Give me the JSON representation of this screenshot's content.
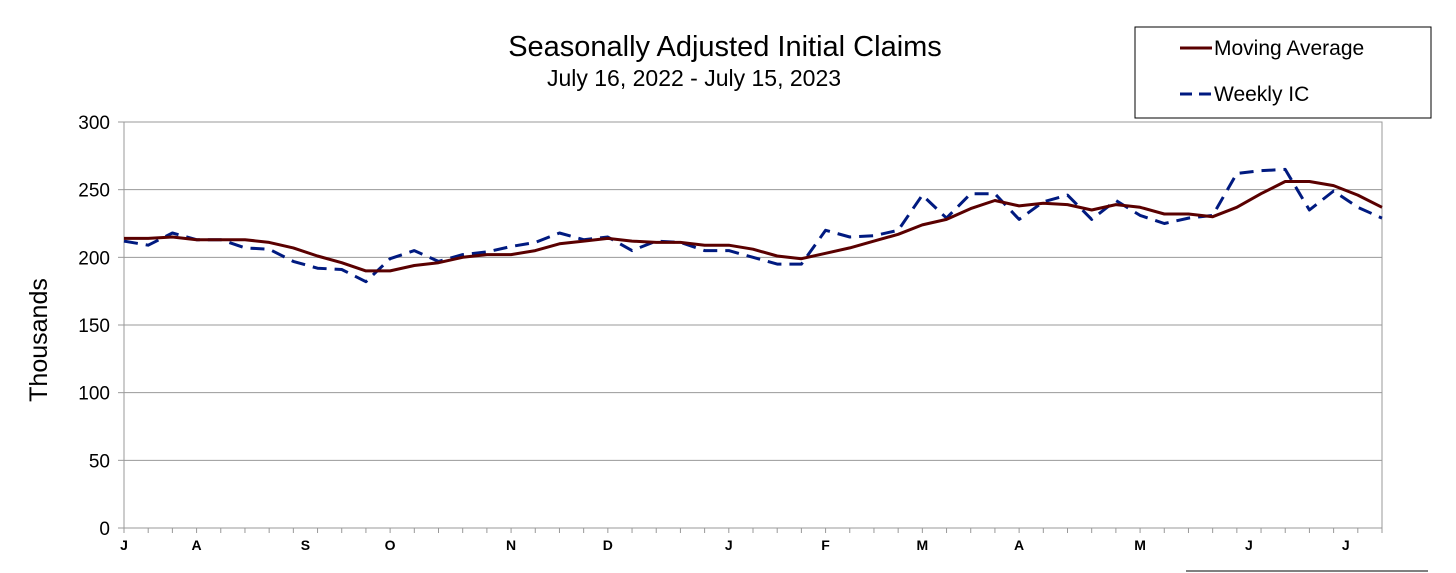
{
  "chart_data": {
    "type": "line",
    "title": "Seasonally Adjusted Initial Claims",
    "subtitle": "July 16, 2022 - July 15, 2023",
    "xlabel": "",
    "ylabel": "Thousands",
    "ylim": [
      0,
      300
    ],
    "yticks": [
      0,
      50,
      100,
      150,
      200,
      250,
      300
    ],
    "grid": "horizontal",
    "legend_position": "top-right",
    "month_labels": [
      {
        "label": "J",
        "week": 0
      },
      {
        "label": "A",
        "week": 3
      },
      {
        "label": "S",
        "week": 7.5
      },
      {
        "label": "O",
        "week": 11
      },
      {
        "label": "N",
        "week": 16
      },
      {
        "label": "D",
        "week": 20
      },
      {
        "label": "J",
        "week": 25
      },
      {
        "label": "F",
        "week": 29
      },
      {
        "label": "M",
        "week": 33
      },
      {
        "label": "A",
        "week": 37
      },
      {
        "label": "M",
        "week": 42
      },
      {
        "label": "J",
        "week": 46.5
      },
      {
        "label": "J",
        "week": 50.5
      }
    ],
    "series": [
      {
        "name": "Moving Average",
        "color": "#5a0000",
        "style": "solid",
        "values": [
          214,
          214,
          215,
          213,
          213,
          213,
          211,
          207,
          201,
          196,
          190,
          190,
          194,
          196,
          200,
          202,
          202,
          205,
          210,
          212,
          214,
          212,
          211,
          211,
          209,
          209,
          206,
          201,
          199,
          203,
          207,
          212,
          217,
          224,
          228,
          236,
          242,
          238,
          240,
          239,
          235,
          239,
          237,
          232,
          232,
          230,
          237,
          247,
          256,
          256,
          253,
          246,
          237
        ]
      },
      {
        "name": "Weekly IC",
        "color": "#001a80",
        "style": "dashed",
        "values": [
          212,
          209,
          218,
          213,
          213,
          207,
          206,
          197,
          192,
          191,
          182,
          199,
          205,
          197,
          202,
          204,
          208,
          211,
          218,
          213,
          215,
          205,
          212,
          211,
          205,
          205,
          200,
          195,
          195,
          220,
          215,
          216,
          220,
          246,
          229,
          247,
          247,
          228,
          241,
          246,
          228,
          242,
          231,
          225,
          229,
          231,
          262,
          264,
          265,
          235,
          249,
          237,
          229
        ]
      }
    ]
  }
}
